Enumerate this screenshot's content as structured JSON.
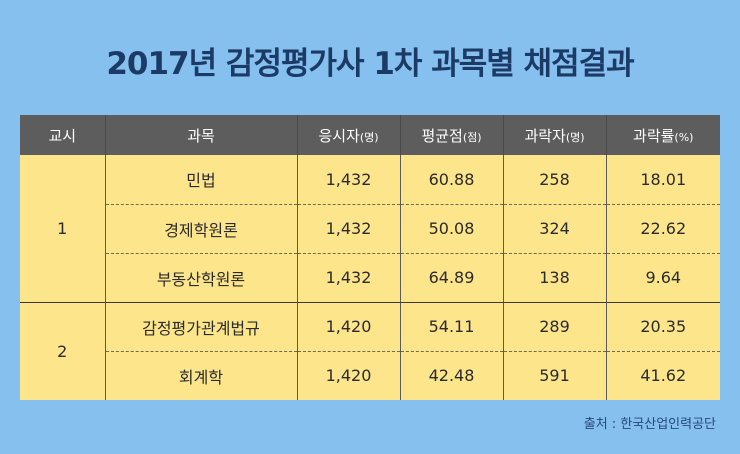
{
  "title": "2017년 감정평가사 1차 과목별 채점결과",
  "table": {
    "headers": [
      {
        "label": "교시",
        "unit": ""
      },
      {
        "label": "과목",
        "unit": ""
      },
      {
        "label": "응시자",
        "unit": "(명)"
      },
      {
        "label": "평균점",
        "unit": "(점)"
      },
      {
        "label": "과락자",
        "unit": "(명)"
      },
      {
        "label": "과락률",
        "unit": "(%)"
      }
    ],
    "groups": [
      {
        "session": "1",
        "rows": [
          {
            "subject": "민법",
            "applicants": "1,432",
            "average": "60.88",
            "failed": "258",
            "fail_rate": "18.01"
          },
          {
            "subject": "경제학원론",
            "applicants": "1,432",
            "average": "50.08",
            "failed": "324",
            "fail_rate": "22.62"
          },
          {
            "subject": "부동산학원론",
            "applicants": "1,432",
            "average": "64.89",
            "failed": "138",
            "fail_rate": "9.64"
          }
        ]
      },
      {
        "session": "2",
        "rows": [
          {
            "subject": "감정평가관계법규",
            "applicants": "1,420",
            "average": "54.11",
            "failed": "289",
            "fail_rate": "20.35"
          },
          {
            "subject": "회계학",
            "applicants": "1,420",
            "average": "42.48",
            "failed": "591",
            "fail_rate": "41.62"
          }
        ]
      }
    ]
  },
  "source": "출처 : 한국산업인력공단",
  "colors": {
    "background": "#86c0ef",
    "header_bg": "#5d5d5d",
    "cell_bg": "#fde58c",
    "title": "#1c3a66"
  }
}
